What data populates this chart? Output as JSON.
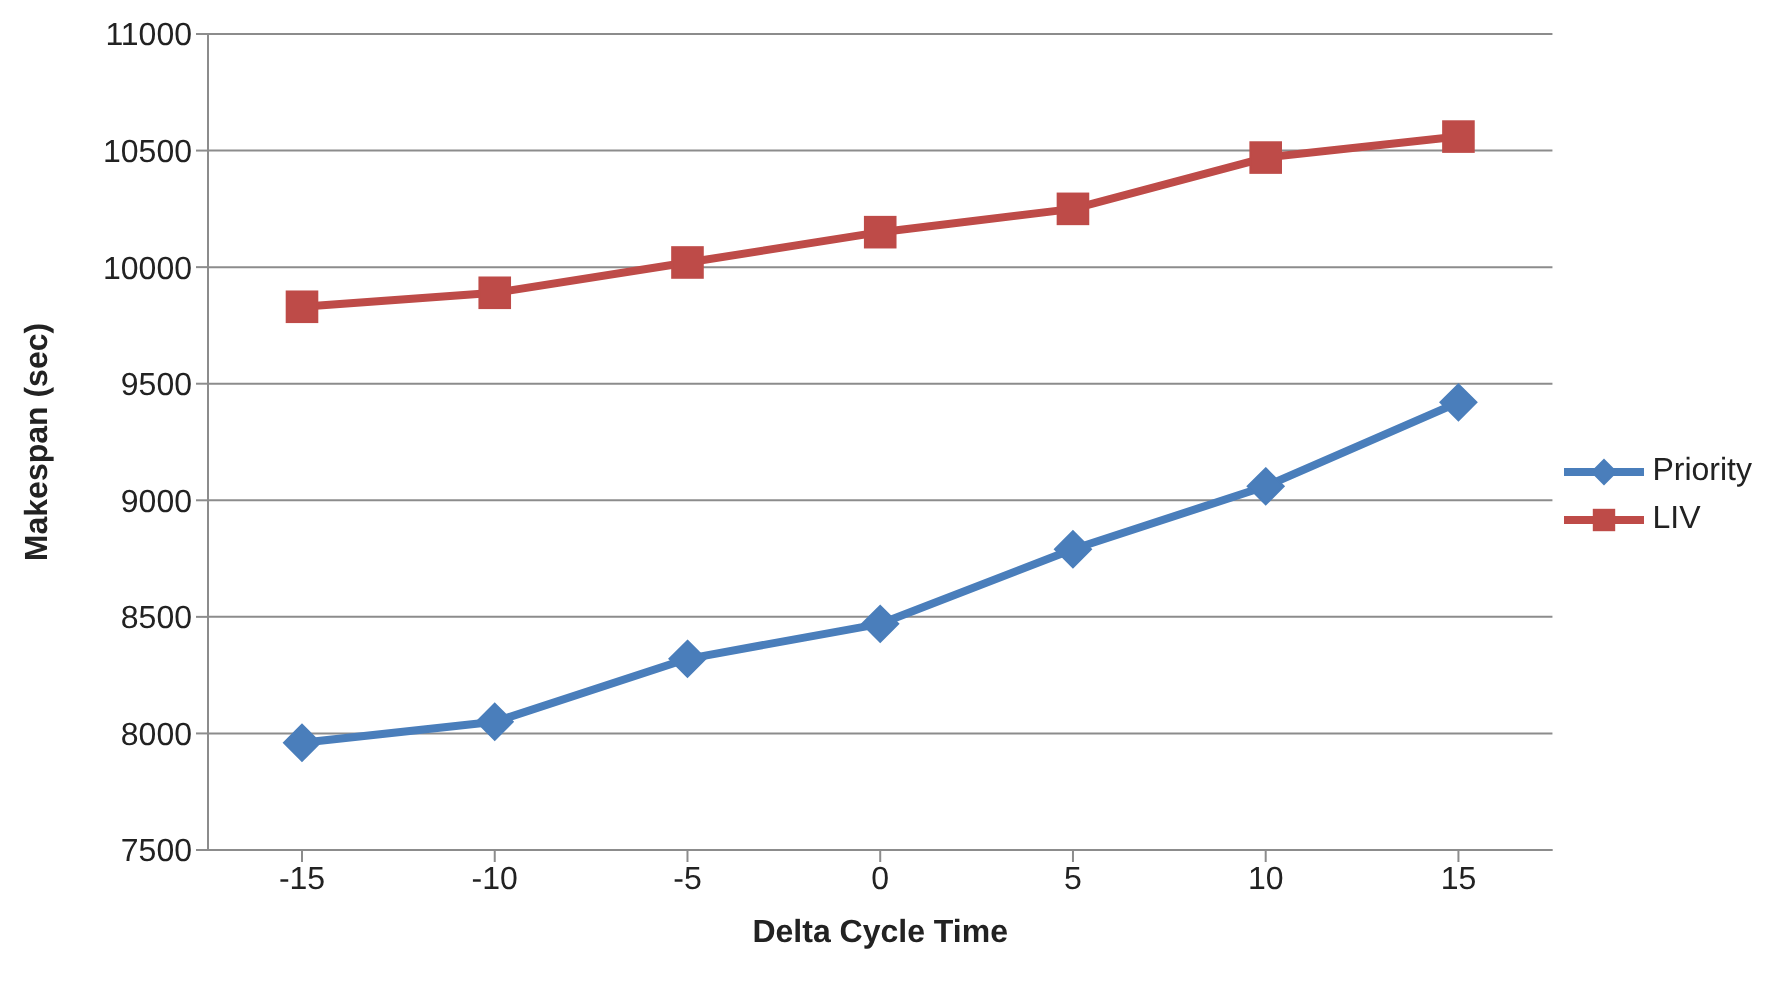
{
  "chart_data": {
    "type": "line",
    "xlabel": "Delta Cycle Time",
    "ylabel": "Makespan (sec)",
    "categories": [
      "-15",
      "-10",
      "-5",
      "0",
      "5",
      "10",
      "15"
    ],
    "series": [
      {
        "name": "Priority",
        "color": "#4a7ebb",
        "marker": "diamond",
        "values": [
          7960,
          8050,
          8320,
          8470,
          8790,
          9060,
          9420
        ]
      },
      {
        "name": "LIV",
        "color": "#be4b48",
        "marker": "square",
        "values": [
          9830,
          9890,
          10020,
          10150,
          10250,
          10470,
          10560
        ]
      }
    ],
    "ylim": [
      7500,
      11000
    ],
    "yticks": [
      7500,
      8000,
      8500,
      9000,
      9500,
      10000,
      10500,
      11000
    ],
    "grid": "y",
    "legend": "right"
  }
}
